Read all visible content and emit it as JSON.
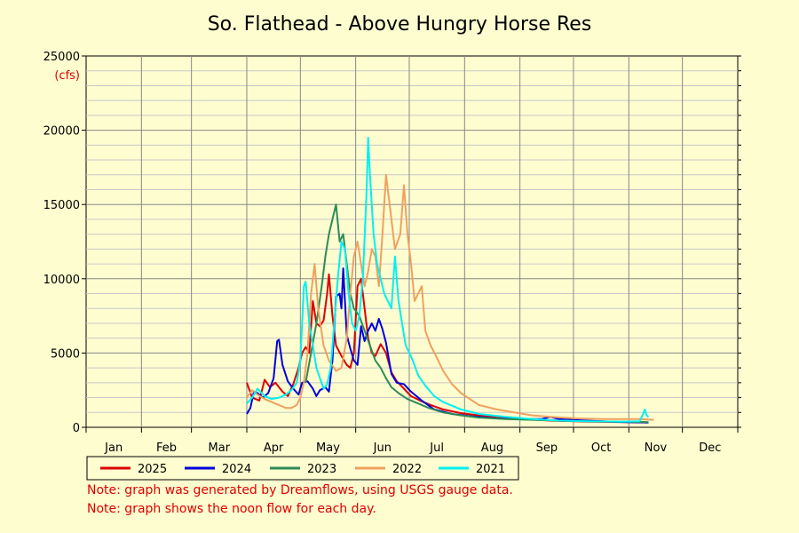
{
  "chart_data": {
    "type": "line",
    "title": "So. Flathead - Above Hungry Horse Res",
    "ylabel": "(cfs)",
    "ylim": [
      0,
      25000
    ],
    "yticks": [
      0,
      5000,
      10000,
      15000,
      20000,
      25000
    ],
    "yticklabels": [
      "0",
      "5000",
      "10000",
      "15000",
      "20000",
      "25000"
    ],
    "months": [
      "Jan",
      "Feb",
      "Mar",
      "Apr",
      "May",
      "Jun",
      "Jul",
      "Aug",
      "Sep",
      "Oct",
      "Nov",
      "Dec"
    ],
    "x_unit": "day of year",
    "xlim": [
      0,
      365
    ],
    "grid": true,
    "legend_position": "bottom",
    "series": [
      {
        "name": "2025",
        "color": "#dd0000",
        "points": [
          [
            90,
            3000
          ],
          [
            93,
            2000
          ],
          [
            97,
            1800
          ],
          [
            100,
            3200
          ],
          [
            103,
            2700
          ],
          [
            106,
            3000
          ],
          [
            110,
            2400
          ],
          [
            113,
            2100
          ],
          [
            116,
            2900
          ],
          [
            119,
            4000
          ],
          [
            121,
            5000
          ],
          [
            123,
            5400
          ],
          [
            125,
            5000
          ],
          [
            127,
            8500
          ],
          [
            129,
            7000
          ],
          [
            131,
            6800
          ],
          [
            133,
            7200
          ],
          [
            135,
            9000
          ],
          [
            136,
            10300
          ],
          [
            138,
            7500
          ],
          [
            140,
            5500
          ],
          [
            143,
            4800
          ],
          [
            146,
            4200
          ],
          [
            148,
            4000
          ],
          [
            150,
            5000
          ],
          [
            152,
            9500
          ],
          [
            154,
            10000
          ],
          [
            156,
            8000
          ],
          [
            158,
            6000
          ],
          [
            160,
            5000
          ],
          [
            162,
            4800
          ],
          [
            165,
            5600
          ],
          [
            168,
            5000
          ],
          [
            171,
            3700
          ],
          [
            174,
            3100
          ],
          [
            178,
            2600
          ],
          [
            182,
            2100
          ],
          [
            187,
            1800
          ],
          [
            193,
            1500
          ],
          [
            200,
            1200
          ],
          [
            210,
            950
          ],
          [
            220,
            800
          ],
          [
            230,
            650
          ],
          [
            245,
            550
          ],
          [
            260,
            450
          ],
          [
            280,
            380
          ],
          [
            300,
            350
          ],
          [
            315,
            320
          ]
        ]
      },
      {
        "name": "2024",
        "color": "#0000dd",
        "points": [
          [
            90,
            900
          ],
          [
            92,
            1300
          ],
          [
            94,
            2400
          ],
          [
            96,
            2300
          ],
          [
            99,
            2000
          ],
          [
            102,
            2300
          ],
          [
            105,
            3300
          ],
          [
            107,
            5800
          ],
          [
            108,
            5900
          ],
          [
            110,
            4200
          ],
          [
            113,
            3100
          ],
          [
            116,
            2600
          ],
          [
            119,
            2200
          ],
          [
            121,
            3000
          ],
          [
            124,
            3100
          ],
          [
            127,
            2600
          ],
          [
            129,
            2100
          ],
          [
            131,
            2500
          ],
          [
            134,
            2700
          ],
          [
            136,
            2400
          ],
          [
            138,
            4500
          ],
          [
            140,
            8800
          ],
          [
            142,
            9000
          ],
          [
            143,
            8000
          ],
          [
            144,
            10700
          ],
          [
            146,
            6200
          ],
          [
            148,
            5300
          ],
          [
            150,
            4500
          ],
          [
            152,
            4200
          ],
          [
            154,
            6800
          ],
          [
            156,
            5800
          ],
          [
            158,
            6500
          ],
          [
            160,
            7000
          ],
          [
            162,
            6500
          ],
          [
            164,
            7300
          ],
          [
            166,
            6600
          ],
          [
            168,
            5700
          ],
          [
            171,
            3600
          ],
          [
            174,
            3000
          ],
          [
            178,
            2900
          ],
          [
            182,
            2400
          ],
          [
            188,
            1800
          ],
          [
            195,
            1200
          ],
          [
            205,
            900
          ],
          [
            215,
            750
          ],
          [
            230,
            600
          ],
          [
            245,
            550
          ],
          [
            255,
            550
          ],
          [
            260,
            700
          ],
          [
            265,
            550
          ],
          [
            280,
            450
          ],
          [
            300,
            350
          ],
          [
            315,
            320
          ]
        ]
      },
      {
        "name": "2023",
        "color": "#2e8b57",
        "points": [
          [
            123,
            3000
          ],
          [
            126,
            5000
          ],
          [
            129,
            7000
          ],
          [
            132,
            9500
          ],
          [
            134,
            11500
          ],
          [
            136,
            13000
          ],
          [
            138,
            14000
          ],
          [
            140,
            15000
          ],
          [
            142,
            12500
          ],
          [
            144,
            13000
          ],
          [
            146,
            11000
          ],
          [
            148,
            9000
          ],
          [
            150,
            8000
          ],
          [
            153,
            7500
          ],
          [
            156,
            6500
          ],
          [
            159,
            5500
          ],
          [
            162,
            4500
          ],
          [
            165,
            4000
          ],
          [
            168,
            3300
          ],
          [
            171,
            2700
          ],
          [
            175,
            2300
          ],
          [
            180,
            1900
          ],
          [
            186,
            1600
          ],
          [
            192,
            1300
          ],
          [
            200,
            1000
          ],
          [
            210,
            800
          ],
          [
            220,
            650
          ],
          [
            235,
            550
          ],
          [
            250,
            500
          ],
          [
            265,
            450
          ],
          [
            280,
            400
          ],
          [
            295,
            380
          ],
          [
            315,
            350
          ]
        ]
      },
      {
        "name": "2022",
        "color": "#f0a060",
        "points": [
          [
            90,
            2000
          ],
          [
            93,
            2500
          ],
          [
            96,
            2200
          ],
          [
            100,
            1900
          ],
          [
            104,
            1700
          ],
          [
            108,
            1500
          ],
          [
            112,
            1300
          ],
          [
            115,
            1300
          ],
          [
            118,
            1500
          ],
          [
            120,
            2000
          ],
          [
            122,
            3000
          ],
          [
            124,
            5000
          ],
          [
            126,
            9000
          ],
          [
            128,
            11000
          ],
          [
            130,
            8000
          ],
          [
            133,
            5500
          ],
          [
            136,
            4500
          ],
          [
            140,
            3800
          ],
          [
            143,
            4000
          ],
          [
            146,
            6000
          ],
          [
            148,
            9000
          ],
          [
            150,
            11500
          ],
          [
            152,
            12500
          ],
          [
            154,
            11000
          ],
          [
            156,
            9500
          ],
          [
            158,
            10500
          ],
          [
            160,
            12000
          ],
          [
            162,
            11500
          ],
          [
            164,
            9500
          ],
          [
            166,
            13000
          ],
          [
            168,
            17000
          ],
          [
            170,
            15000
          ],
          [
            173,
            12000
          ],
          [
            176,
            13000
          ],
          [
            178,
            16300
          ],
          [
            180,
            13000
          ],
          [
            182,
            11000
          ],
          [
            184,
            8500
          ],
          [
            186,
            9000
          ],
          [
            188,
            9500
          ],
          [
            190,
            6500
          ],
          [
            193,
            5500
          ],
          [
            196,
            4800
          ],
          [
            200,
            3800
          ],
          [
            205,
            2900
          ],
          [
            210,
            2300
          ],
          [
            220,
            1500
          ],
          [
            230,
            1200
          ],
          [
            240,
            1000
          ],
          [
            250,
            800
          ],
          [
            260,
            700
          ],
          [
            275,
            600
          ],
          [
            290,
            550
          ],
          [
            310,
            550
          ],
          [
            318,
            500
          ]
        ]
      },
      {
        "name": "2021",
        "color": "#00f0f0",
        "points": [
          [
            90,
            1600
          ],
          [
            93,
            2000
          ],
          [
            96,
            2600
          ],
          [
            100,
            2100
          ],
          [
            104,
            1900
          ],
          [
            108,
            2000
          ],
          [
            112,
            2200
          ],
          [
            115,
            2500
          ],
          [
            118,
            3000
          ],
          [
            120,
            4500
          ],
          [
            122,
            9500
          ],
          [
            123,
            9800
          ],
          [
            125,
            7000
          ],
          [
            127,
            5500
          ],
          [
            129,
            4000
          ],
          [
            131,
            3300
          ],
          [
            133,
            2600
          ],
          [
            135,
            2900
          ],
          [
            137,
            4000
          ],
          [
            139,
            7000
          ],
          [
            141,
            10000
          ],
          [
            143,
            12500
          ],
          [
            145,
            12000
          ],
          [
            147,
            9000
          ],
          [
            149,
            7000
          ],
          [
            151,
            6500
          ],
          [
            153,
            7500
          ],
          [
            155,
            10000
          ],
          [
            157,
            15500
          ],
          [
            158,
            19500
          ],
          [
            159,
            17000
          ],
          [
            161,
            13000
          ],
          [
            163,
            11000
          ],
          [
            165,
            10000
          ],
          [
            167,
            9000
          ],
          [
            169,
            8500
          ],
          [
            171,
            8000
          ],
          [
            173,
            11500
          ],
          [
            175,
            8500
          ],
          [
            177,
            7000
          ],
          [
            179,
            5500
          ],
          [
            181,
            5000
          ],
          [
            183,
            4500
          ],
          [
            186,
            3500
          ],
          [
            190,
            2800
          ],
          [
            195,
            2100
          ],
          [
            200,
            1700
          ],
          [
            210,
            1200
          ],
          [
            220,
            900
          ],
          [
            235,
            700
          ],
          [
            250,
            550
          ],
          [
            265,
            450
          ],
          [
            280,
            400
          ],
          [
            300,
            380
          ],
          [
            310,
            400
          ],
          [
            312,
            900
          ],
          [
            313,
            1200
          ],
          [
            314,
            800
          ],
          [
            315,
            700
          ]
        ]
      }
    ]
  },
  "notes": [
    "Note: graph was generated by Dreamflows, using USGS gauge data.",
    "Note: graph shows the noon flow for each day."
  ]
}
